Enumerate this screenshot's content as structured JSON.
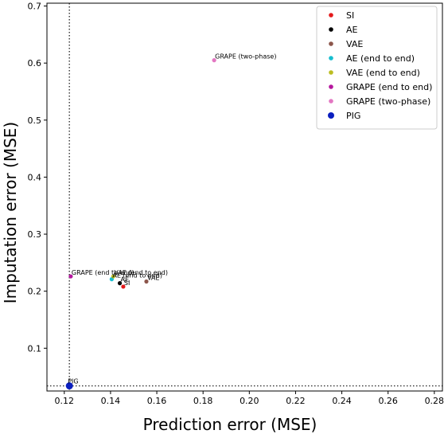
{
  "chart_data": {
    "type": "scatter",
    "xlabel": "Prediction error (MSE)",
    "ylabel": "Imputation error (MSE)",
    "xlim": [
      0.1125,
      0.2835
    ],
    "ylim": [
      0.025,
      0.705
    ],
    "xticks": [
      "0.12",
      "0.14",
      "0.16",
      "0.18",
      "0.20",
      "0.22",
      "0.24",
      "0.26",
      "0.28"
    ],
    "yticks": [
      "0.1",
      "0.2",
      "0.3",
      "0.4",
      "0.5",
      "0.6",
      "0.7"
    ],
    "grid": false,
    "legend_position": "top-right",
    "reference_lines": {
      "vertical_x": 0.1222,
      "horizontal_y": 0.034,
      "style": "dotted"
    },
    "series": [
      {
        "name": "SI",
        "color": "#e41a1c",
        "x": 0.1455,
        "y": 0.208,
        "label": "SI"
      },
      {
        "name": "AE",
        "color": "#000000",
        "x": 0.144,
        "y": 0.214,
        "label": "AE"
      },
      {
        "name": "VAE",
        "color": "#8c564b",
        "x": 0.1555,
        "y": 0.217,
        "label": "VAE"
      },
      {
        "name": "AE (end to end)",
        "color": "#17becf",
        "x": 0.1405,
        "y": 0.221,
        "label": "AE (end to end)"
      },
      {
        "name": "VAE (end to end)",
        "color": "#bcbd22",
        "x": 0.1412,
        "y": 0.226,
        "label": "VAE (end to end)"
      },
      {
        "name": "GRAPE (end to end)",
        "color": "#b5179e",
        "x": 0.1228,
        "y": 0.226,
        "label": "GRAPE (end to end)"
      },
      {
        "name": "GRAPE (two-phase)",
        "color": "#e377c2",
        "x": 0.1848,
        "y": 0.605,
        "label": "GRAPE (two-phase)"
      },
      {
        "name": "PIG",
        "color": "#0b1fbf",
        "x": 0.1222,
        "y": 0.034,
        "label": "PIG",
        "highlight": true
      }
    ]
  }
}
